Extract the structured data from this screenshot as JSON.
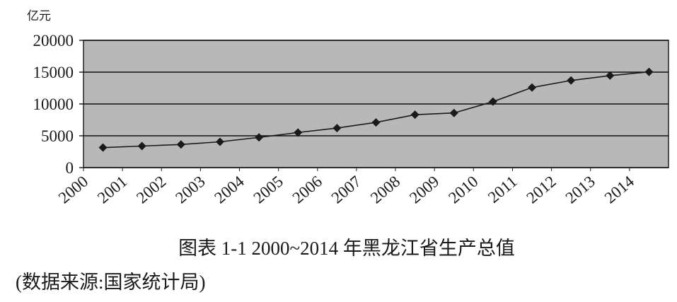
{
  "chart_data": {
    "type": "line",
    "y_unit": "亿元",
    "caption": "图表 1-1 2000~2014 年黑龙江省生产总值",
    "source": "(数据来源:国家统计局)",
    "categories": [
      "2000",
      "2001",
      "2002",
      "2003",
      "2004",
      "2005",
      "2006",
      "2007",
      "2008",
      "2009",
      "2010",
      "2011",
      "2012",
      "2013",
      "2014"
    ],
    "series": [
      {
        "color": "#1a1a1a",
        "values": [
          3151,
          3390,
          3637,
          4057,
          4751,
          5514,
          6212,
          7104,
          8314,
          8587,
          10369,
          12582,
          13692,
          14455,
          15039
        ]
      }
    ],
    "ylim": [
      0,
      20000
    ],
    "yticks": [
      0,
      5000,
      10000,
      15000,
      20000
    ],
    "grid": true,
    "plot_background": "#b8b8b8"
  }
}
